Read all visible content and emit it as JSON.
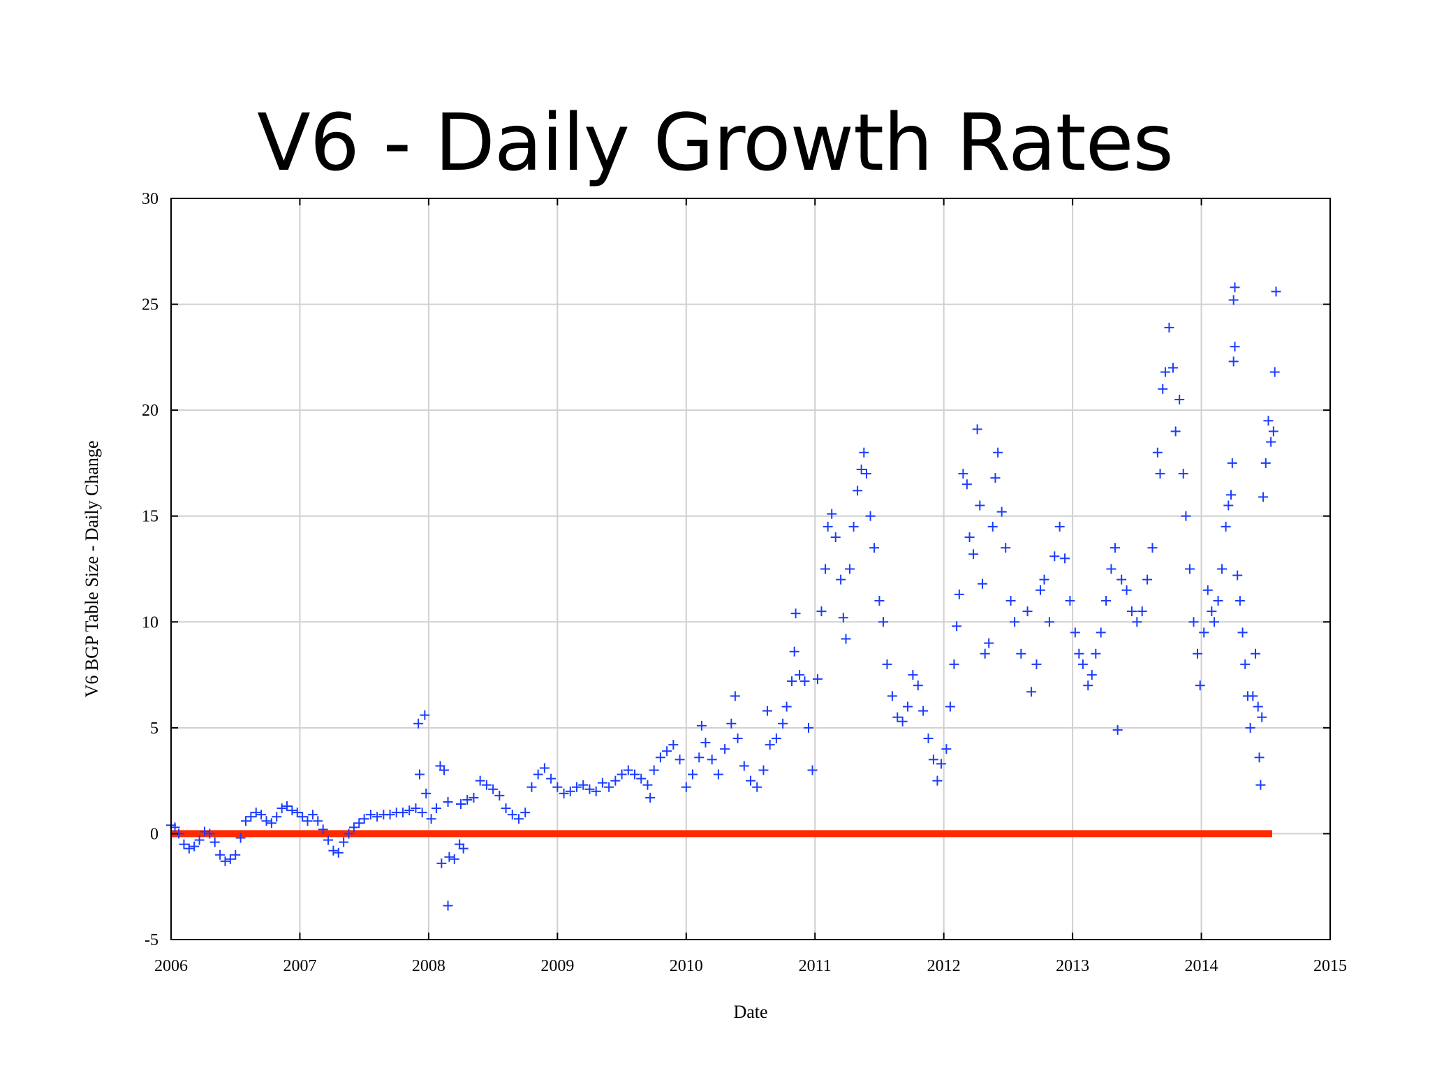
{
  "slide": {
    "title": "V6 - Daily Growth Rates"
  },
  "chart_data": {
    "type": "scatter",
    "title": "",
    "xlabel": "Date",
    "ylabel": "V6 BGP Table Size - Daily Change",
    "xlim": [
      2006,
      2015
    ],
    "ylim": [
      -5,
      30
    ],
    "x_ticks": [
      "2006",
      "2007",
      "2008",
      "2009",
      "2010",
      "2011",
      "2012",
      "2013",
      "2014",
      "2015"
    ],
    "y_ticks": [
      "-5",
      "0",
      "5",
      "10",
      "15",
      "20",
      "25",
      "30"
    ],
    "grid": true,
    "legend": "none",
    "colors": {
      "points": "#1a3cff",
      "reference_line": "#ff2a00",
      "grid": "#d0d0d0"
    },
    "reference_line": {
      "y": 0,
      "x": [
        2006.0,
        2014.55
      ]
    },
    "marker": "plus",
    "series": [
      {
        "points": [
          [
            2006.0,
            0.4
          ],
          [
            2006.03,
            0.3
          ],
          [
            2006.06,
            0.0
          ],
          [
            2006.1,
            -0.5
          ],
          [
            2006.14,
            -0.7
          ],
          [
            2006.18,
            -0.6
          ],
          [
            2006.22,
            -0.3
          ],
          [
            2006.26,
            0.1
          ],
          [
            2006.3,
            0.0
          ],
          [
            2006.34,
            -0.4
          ],
          [
            2006.38,
            -1.0
          ],
          [
            2006.42,
            -1.3
          ],
          [
            2006.46,
            -1.2
          ],
          [
            2006.5,
            -1.0
          ],
          [
            2006.54,
            -0.2
          ],
          [
            2006.58,
            0.6
          ],
          [
            2006.62,
            0.8
          ],
          [
            2006.66,
            1.0
          ],
          [
            2006.7,
            0.9
          ],
          [
            2006.74,
            0.6
          ],
          [
            2006.78,
            0.5
          ],
          [
            2006.82,
            0.8
          ],
          [
            2006.86,
            1.2
          ],
          [
            2006.9,
            1.3
          ],
          [
            2006.94,
            1.1
          ],
          [
            2006.98,
            1.0
          ],
          [
            2007.02,
            0.8
          ],
          [
            2007.06,
            0.6
          ],
          [
            2007.1,
            0.9
          ],
          [
            2007.14,
            0.6
          ],
          [
            2007.18,
            0.2
          ],
          [
            2007.22,
            -0.3
          ],
          [
            2007.26,
            -0.8
          ],
          [
            2007.3,
            -0.9
          ],
          [
            2007.34,
            -0.4
          ],
          [
            2007.38,
            0.0
          ],
          [
            2007.42,
            0.3
          ],
          [
            2007.46,
            0.5
          ],
          [
            2007.5,
            0.7
          ],
          [
            2007.55,
            0.9
          ],
          [
            2007.6,
            0.8
          ],
          [
            2007.65,
            0.9
          ],
          [
            2007.7,
            0.9
          ],
          [
            2007.75,
            1.0
          ],
          [
            2007.8,
            1.0
          ],
          [
            2007.85,
            1.1
          ],
          [
            2007.9,
            1.2
          ],
          [
            2007.95,
            1.0
          ],
          [
            2007.92,
            5.2
          ],
          [
            2007.97,
            5.6
          ],
          [
            2007.93,
            2.8
          ],
          [
            2007.98,
            1.9
          ],
          [
            2008.02,
            0.7
          ],
          [
            2008.06,
            1.2
          ],
          [
            2008.09,
            3.2
          ],
          [
            2008.12,
            3.0
          ],
          [
            2008.15,
            1.5
          ],
          [
            2008.1,
            -1.4
          ],
          [
            2008.16,
            -1.1
          ],
          [
            2008.15,
            -3.4
          ],
          [
            2008.2,
            -1.2
          ],
          [
            2008.24,
            -0.5
          ],
          [
            2008.27,
            -0.7
          ],
          [
            2008.25,
            1.4
          ],
          [
            2008.3,
            1.6
          ],
          [
            2008.35,
            1.7
          ],
          [
            2008.4,
            2.5
          ],
          [
            2008.45,
            2.3
          ],
          [
            2008.5,
            2.1
          ],
          [
            2008.55,
            1.8
          ],
          [
            2008.6,
            1.2
          ],
          [
            2008.65,
            0.9
          ],
          [
            2008.7,
            0.7
          ],
          [
            2008.75,
            1.0
          ],
          [
            2008.8,
            2.2
          ],
          [
            2008.85,
            2.8
          ],
          [
            2008.9,
            3.1
          ],
          [
            2008.95,
            2.6
          ],
          [
            2009.0,
            2.2
          ],
          [
            2009.05,
            1.9
          ],
          [
            2009.1,
            2.0
          ],
          [
            2009.15,
            2.2
          ],
          [
            2009.2,
            2.3
          ],
          [
            2009.25,
            2.1
          ],
          [
            2009.3,
            2.0
          ],
          [
            2009.35,
            2.4
          ],
          [
            2009.4,
            2.2
          ],
          [
            2009.45,
            2.5
          ],
          [
            2009.5,
            2.8
          ],
          [
            2009.55,
            3.0
          ],
          [
            2009.6,
            2.8
          ],
          [
            2009.65,
            2.6
          ],
          [
            2009.7,
            2.3
          ],
          [
            2009.72,
            1.7
          ],
          [
            2009.75,
            3.0
          ],
          [
            2009.8,
            3.6
          ],
          [
            2009.85,
            3.9
          ],
          [
            2009.9,
            4.2
          ],
          [
            2009.95,
            3.5
          ],
          [
            2010.0,
            2.2
          ],
          [
            2010.05,
            2.8
          ],
          [
            2010.1,
            3.6
          ],
          [
            2010.12,
            5.1
          ],
          [
            2010.15,
            4.3
          ],
          [
            2010.2,
            3.5
          ],
          [
            2010.25,
            2.8
          ],
          [
            2010.3,
            4.0
          ],
          [
            2010.35,
            5.2
          ],
          [
            2010.38,
            6.5
          ],
          [
            2010.4,
            4.5
          ],
          [
            2010.45,
            3.2
          ],
          [
            2010.5,
            2.5
          ],
          [
            2010.55,
            2.2
          ],
          [
            2010.6,
            3.0
          ],
          [
            2010.63,
            5.8
          ],
          [
            2010.65,
            4.2
          ],
          [
            2010.7,
            4.5
          ],
          [
            2010.75,
            5.2
          ],
          [
            2010.78,
            6.0
          ],
          [
            2010.82,
            7.2
          ],
          [
            2010.84,
            8.6
          ],
          [
            2010.85,
            10.4
          ],
          [
            2010.88,
            7.5
          ],
          [
            2010.92,
            7.2
          ],
          [
            2010.95,
            5.0
          ],
          [
            2010.98,
            3.0
          ],
          [
            2011.02,
            7.3
          ],
          [
            2011.05,
            10.5
          ],
          [
            2011.08,
            12.5
          ],
          [
            2011.1,
            14.5
          ],
          [
            2011.13,
            15.1
          ],
          [
            2011.16,
            14.0
          ],
          [
            2011.2,
            12.0
          ],
          [
            2011.22,
            10.2
          ],
          [
            2011.24,
            9.2
          ],
          [
            2011.27,
            12.5
          ],
          [
            2011.3,
            14.5
          ],
          [
            2011.33,
            16.2
          ],
          [
            2011.36,
            17.2
          ],
          [
            2011.38,
            18.0
          ],
          [
            2011.4,
            17.0
          ],
          [
            2011.43,
            15.0
          ],
          [
            2011.46,
            13.5
          ],
          [
            2011.5,
            11.0
          ],
          [
            2011.53,
            10.0
          ],
          [
            2011.56,
            8.0
          ],
          [
            2011.6,
            6.5
          ],
          [
            2011.64,
            5.5
          ],
          [
            2011.68,
            5.3
          ],
          [
            2011.72,
            6.0
          ],
          [
            2011.76,
            7.5
          ],
          [
            2011.8,
            7.0
          ],
          [
            2011.84,
            5.8
          ],
          [
            2011.88,
            4.5
          ],
          [
            2011.92,
            3.5
          ],
          [
            2011.95,
            2.5
          ],
          [
            2011.98,
            3.3
          ],
          [
            2012.02,
            4.0
          ],
          [
            2012.05,
            6.0
          ],
          [
            2012.08,
            8.0
          ],
          [
            2012.1,
            9.8
          ],
          [
            2012.12,
            11.3
          ],
          [
            2012.15,
            17.0
          ],
          [
            2012.18,
            16.5
          ],
          [
            2012.2,
            14.0
          ],
          [
            2012.23,
            13.2
          ],
          [
            2012.26,
            19.1
          ],
          [
            2012.28,
            15.5
          ],
          [
            2012.3,
            11.8
          ],
          [
            2012.32,
            8.5
          ],
          [
            2012.35,
            9.0
          ],
          [
            2012.38,
            14.5
          ],
          [
            2012.4,
            16.8
          ],
          [
            2012.42,
            18.0
          ],
          [
            2012.45,
            15.2
          ],
          [
            2012.48,
            13.5
          ],
          [
            2012.52,
            11.0
          ],
          [
            2012.55,
            10.0
          ],
          [
            2012.6,
            8.5
          ],
          [
            2012.65,
            10.5
          ],
          [
            2012.68,
            6.7
          ],
          [
            2012.72,
            8.0
          ],
          [
            2012.75,
            11.5
          ],
          [
            2012.78,
            12.0
          ],
          [
            2012.82,
            10.0
          ],
          [
            2012.86,
            13.1
          ],
          [
            2012.9,
            14.5
          ],
          [
            2012.94,
            13.0
          ],
          [
            2012.98,
            11.0
          ],
          [
            2013.02,
            9.5
          ],
          [
            2013.05,
            8.5
          ],
          [
            2013.08,
            8.0
          ],
          [
            2013.12,
            7.0
          ],
          [
            2013.15,
            7.5
          ],
          [
            2013.18,
            8.5
          ],
          [
            2013.22,
            9.5
          ],
          [
            2013.26,
            11.0
          ],
          [
            2013.3,
            12.5
          ],
          [
            2013.33,
            13.5
          ],
          [
            2013.35,
            4.9
          ],
          [
            2013.38,
            12.0
          ],
          [
            2013.42,
            11.5
          ],
          [
            2013.46,
            10.5
          ],
          [
            2013.5,
            10.0
          ],
          [
            2013.54,
            10.5
          ],
          [
            2013.58,
            12.0
          ],
          [
            2013.62,
            13.5
          ],
          [
            2013.66,
            18.0
          ],
          [
            2013.68,
            17.0
          ],
          [
            2013.7,
            21.0
          ],
          [
            2013.72,
            21.8
          ],
          [
            2013.75,
            23.9
          ],
          [
            2013.78,
            22.0
          ],
          [
            2013.8,
            19.0
          ],
          [
            2013.83,
            20.5
          ],
          [
            2013.86,
            17.0
          ],
          [
            2013.88,
            15.0
          ],
          [
            2013.91,
            12.5
          ],
          [
            2013.94,
            10.0
          ],
          [
            2013.97,
            8.5
          ],
          [
            2013.99,
            7.0
          ],
          [
            2014.02,
            9.5
          ],
          [
            2014.05,
            11.5
          ],
          [
            2014.08,
            10.5
          ],
          [
            2014.1,
            10.0
          ],
          [
            2014.13,
            11.0
          ],
          [
            2014.16,
            12.5
          ],
          [
            2014.19,
            14.5
          ],
          [
            2014.21,
            15.5
          ],
          [
            2014.23,
            16.0
          ],
          [
            2014.24,
            17.5
          ],
          [
            2014.25,
            22.3
          ],
          [
            2014.26,
            23.0
          ],
          [
            2014.25,
            25.2
          ],
          [
            2014.26,
            25.8
          ],
          [
            2014.28,
            12.2
          ],
          [
            2014.3,
            11.0
          ],
          [
            2014.32,
            9.5
          ],
          [
            2014.34,
            8.0
          ],
          [
            2014.36,
            6.5
          ],
          [
            2014.38,
            5.0
          ],
          [
            2014.4,
            6.5
          ],
          [
            2014.42,
            8.5
          ],
          [
            2014.44,
            6.0
          ],
          [
            2014.45,
            3.6
          ],
          [
            2014.46,
            2.3
          ],
          [
            2014.47,
            5.5
          ],
          [
            2014.48,
            15.9
          ],
          [
            2014.5,
            17.5
          ],
          [
            2014.52,
            19.5
          ],
          [
            2014.54,
            18.5
          ],
          [
            2014.56,
            19.0
          ],
          [
            2014.57,
            21.8
          ],
          [
            2014.58,
            25.6
          ]
        ]
      }
    ]
  }
}
